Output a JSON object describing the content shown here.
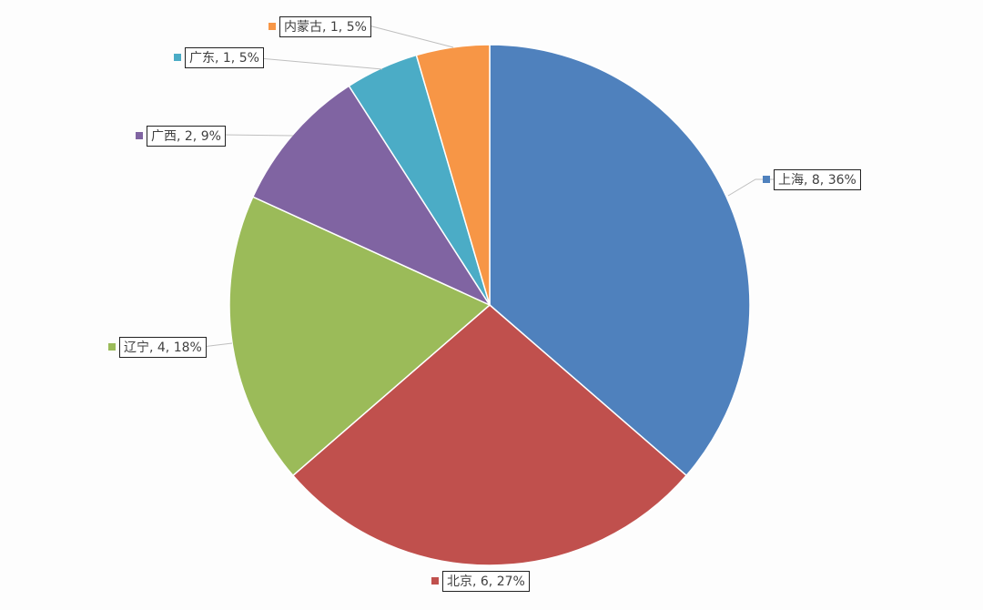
{
  "chart_data": {
    "type": "pie",
    "title": "",
    "start_angle": "12 o'clock",
    "direction": "clockwise",
    "slices": [
      {
        "name": "上海",
        "value": 8,
        "percent": "36%",
        "label": "上海, 8, 36%",
        "color": "#4f81bd"
      },
      {
        "name": "北京",
        "value": 6,
        "percent": "27%",
        "label": "北京, 6, 27%",
        "color": "#c0504d"
      },
      {
        "name": "辽宁",
        "value": 4,
        "percent": "18%",
        "label": "辽宁, 4, 18%",
        "color": "#9bbb59"
      },
      {
        "name": "广西",
        "value": 2,
        "percent": "9%",
        "label": "广西, 2, 9%",
        "color": "#8064a2"
      },
      {
        "name": "广东",
        "value": 1,
        "percent": "5%",
        "label": "广东, 1, 5%",
        "color": "#4bacc6"
      },
      {
        "name": "内蒙古",
        "value": 1,
        "percent": "5%",
        "label": "内蒙古, 1, 5%",
        "color": "#f79646"
      }
    ],
    "legend": "none",
    "data_labels": "outside with leader lines and legend key"
  }
}
